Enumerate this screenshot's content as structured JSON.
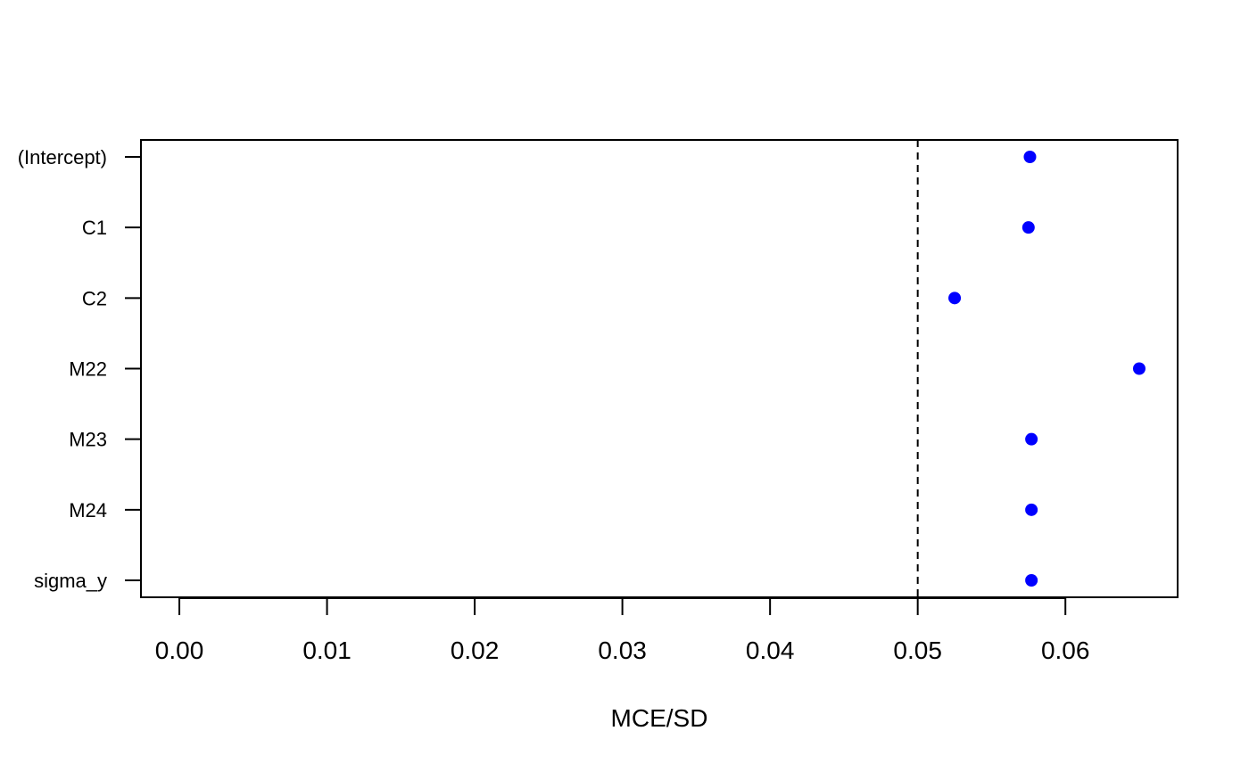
{
  "chart_data": {
    "type": "scatter",
    "xlabel": "MCE/SD",
    "categories": [
      "(Intercept)",
      "C1",
      "C2",
      "M22",
      "M23",
      "M24",
      "sigma_y"
    ],
    "values": [
      0.0576,
      0.0575,
      0.0525,
      0.065,
      0.0577,
      0.0577,
      0.0577
    ],
    "x_ticks": [
      "0.00",
      "0.01",
      "0.02",
      "0.03",
      "0.04",
      "0.05",
      "0.06"
    ],
    "xlim": [
      -0.0026,
      0.0676
    ],
    "reference_line": 0.05,
    "point_color": "#0000ff",
    "grid": false
  }
}
